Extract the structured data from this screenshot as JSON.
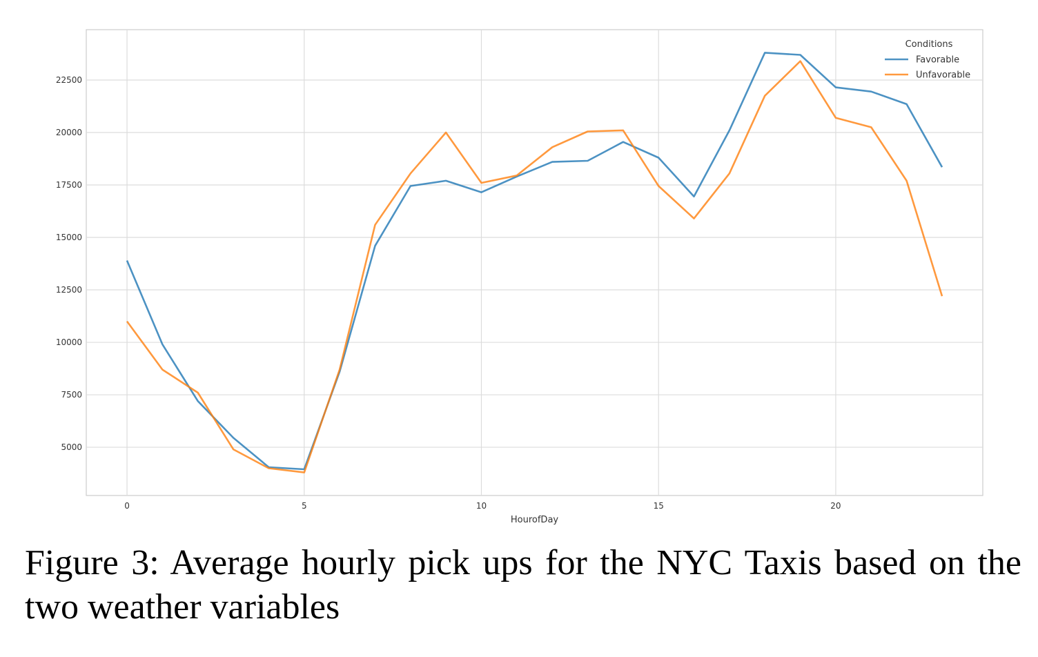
{
  "chart_data": {
    "type": "line",
    "xlabel": "HourofDay",
    "ylabel": "",
    "xlim": [
      -1.15,
      24.15
    ],
    "ylim": [
      2700,
      24900
    ],
    "x_ticks": [
      0,
      5,
      10,
      15,
      20
    ],
    "y_ticks": [
      5000,
      7500,
      10000,
      12500,
      15000,
      17500,
      20000,
      22500
    ],
    "grid": true,
    "legend": {
      "title": "Conditions",
      "placement": "top-right"
    },
    "x": [
      0,
      1,
      2,
      3,
      4,
      5,
      6,
      7,
      8,
      9,
      10,
      11,
      12,
      13,
      14,
      15,
      16,
      17,
      18,
      19,
      20,
      21,
      22,
      23
    ],
    "series": [
      {
        "name": "Favorable",
        "color": "#1f77b4",
        "values": [
          13900,
          9900,
          7200,
          5450,
          4050,
          3950,
          8600,
          14600,
          17450,
          17700,
          17150,
          17900,
          18600,
          18650,
          19550,
          18800,
          16950,
          20100,
          23800,
          23700,
          22150,
          21950,
          21350,
          18350
        ]
      },
      {
        "name": "Unfavorable",
        "color": "#ff7f0e",
        "values": [
          11000,
          8700,
          7600,
          4900,
          4000,
          3800,
          8700,
          15600,
          18050,
          20000,
          17600,
          17950,
          19300,
          20050,
          20100,
          17450,
          15900,
          18050,
          21750,
          23400,
          20700,
          20250,
          17700,
          12200
        ]
      }
    ]
  },
  "caption": {
    "text": "Figure 3: Average hourly pick ups for the NYC Taxis based on the two weather variables"
  }
}
